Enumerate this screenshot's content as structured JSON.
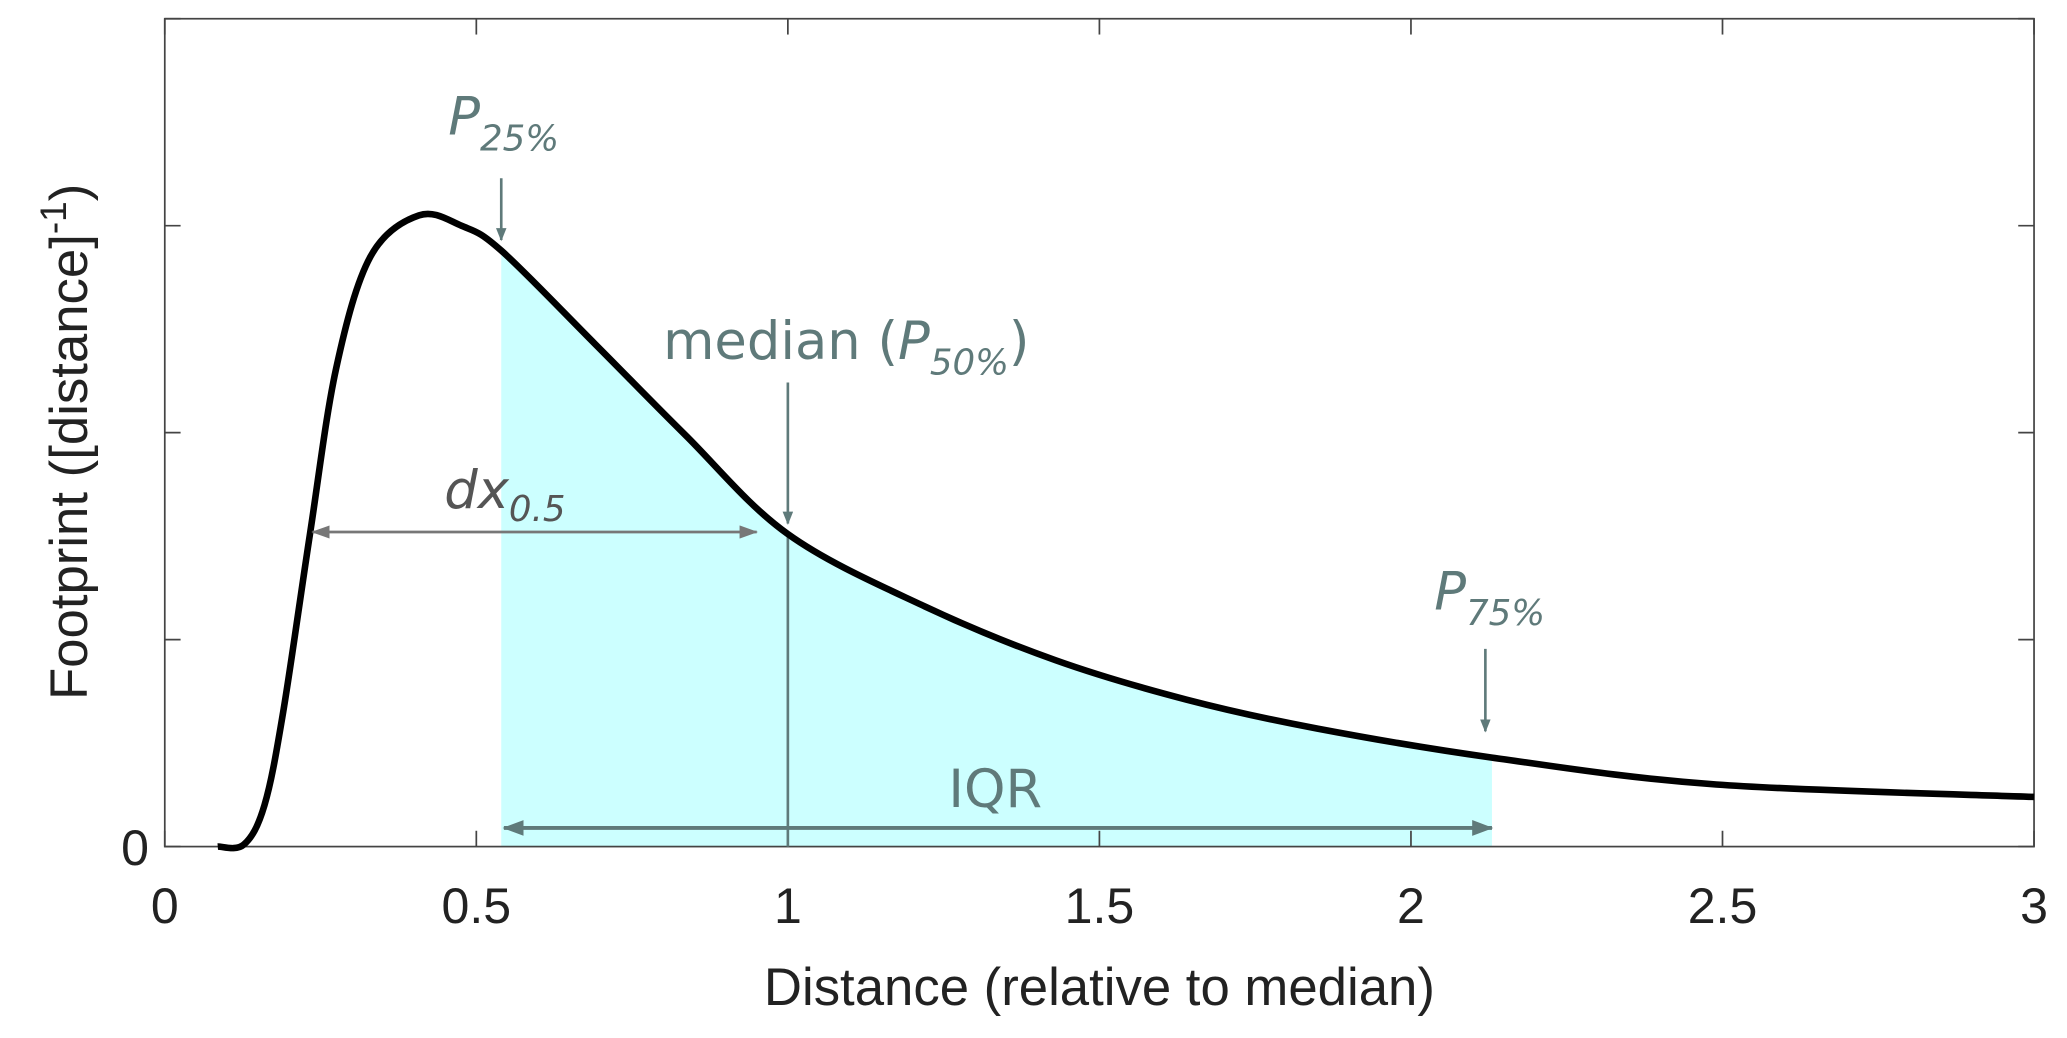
{
  "chart_data": {
    "type": "line",
    "xlabel": "Distance (relative to median)",
    "ylabel": "Footprint ([distance]",
    "ylabel_sup": "-1",
    "ylabel_close": ")",
    "xlim": [
      0,
      3
    ],
    "ylim": [
      0,
      4
    ],
    "x_ticks": [
      0,
      0.5,
      1,
      1.5,
      2,
      2.5,
      3
    ],
    "x_tick_labels": [
      "0",
      "0.5",
      "1",
      "1.5",
      "2",
      "2.5",
      "3"
    ],
    "y_ticks": [
      0,
      1,
      2,
      3,
      4
    ],
    "y_tick_labels": [
      "0",
      "",
      "",
      "",
      ""
    ],
    "grid": false,
    "series": [
      {
        "color": "#000000",
        "x": [
          0.085,
          0.127,
          0.16,
          0.19,
          0.233,
          0.275,
          0.33,
          0.408,
          0.476,
          0.54,
          0.69,
          0.835,
          1.0,
          1.22,
          1.43,
          1.64,
          1.85,
          2.13,
          2.49,
          3.0
        ],
        "y": [
          0,
          0.01,
          0.2,
          0.65,
          1.51,
          2.31,
          2.85,
          3.05,
          3.0,
          2.88,
          2.43,
          1.99,
          1.51,
          1.16,
          0.9,
          0.71,
          0.57,
          0.43,
          0.3,
          0.24
        ]
      }
    ],
    "shaded_region": {
      "x_from": 0.54,
      "x_to": 2.13,
      "color": "#ccffff"
    },
    "annotation_color": "#5f7a7a",
    "annotations": {
      "p25": {
        "main": "P",
        "sub": "25%",
        "x": 0.54
      },
      "median": {
        "main": "median (",
        "p": "P",
        "sub": "50%",
        "close": ")",
        "x": 1.0
      },
      "p75": {
        "main": "P",
        "sub": "75%",
        "x": 2.13
      },
      "dx": {
        "main": "dx",
        "sub": "0.5",
        "x_from": 0.233,
        "x_to": 0.95,
        "y": 1.52,
        "color": "#777777"
      },
      "iqr": {
        "label": "IQR",
        "x_from": 0.54,
        "x_to": 2.13,
        "y": 0.09
      }
    }
  }
}
